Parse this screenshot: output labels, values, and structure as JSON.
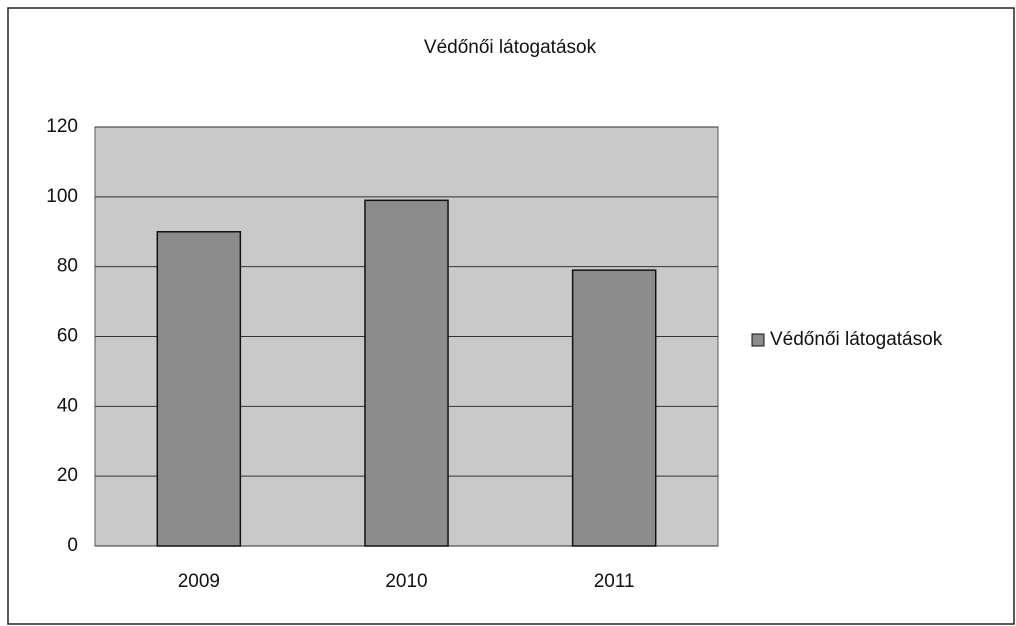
{
  "chart_data": {
    "type": "bar",
    "title": "Védőnői látogatások",
    "categories": [
      "2009",
      "2010",
      "2011"
    ],
    "series": [
      {
        "name": "Védőnői látogatások",
        "color": "#8c8c8c",
        "values": [
          90,
          99,
          79
        ]
      }
    ],
    "ylim": [
      0,
      120
    ],
    "yticks": [
      0,
      20,
      40,
      60,
      80,
      100,
      120
    ],
    "grid": true,
    "legend": "right",
    "plot_background": "#c9c9c9"
  }
}
